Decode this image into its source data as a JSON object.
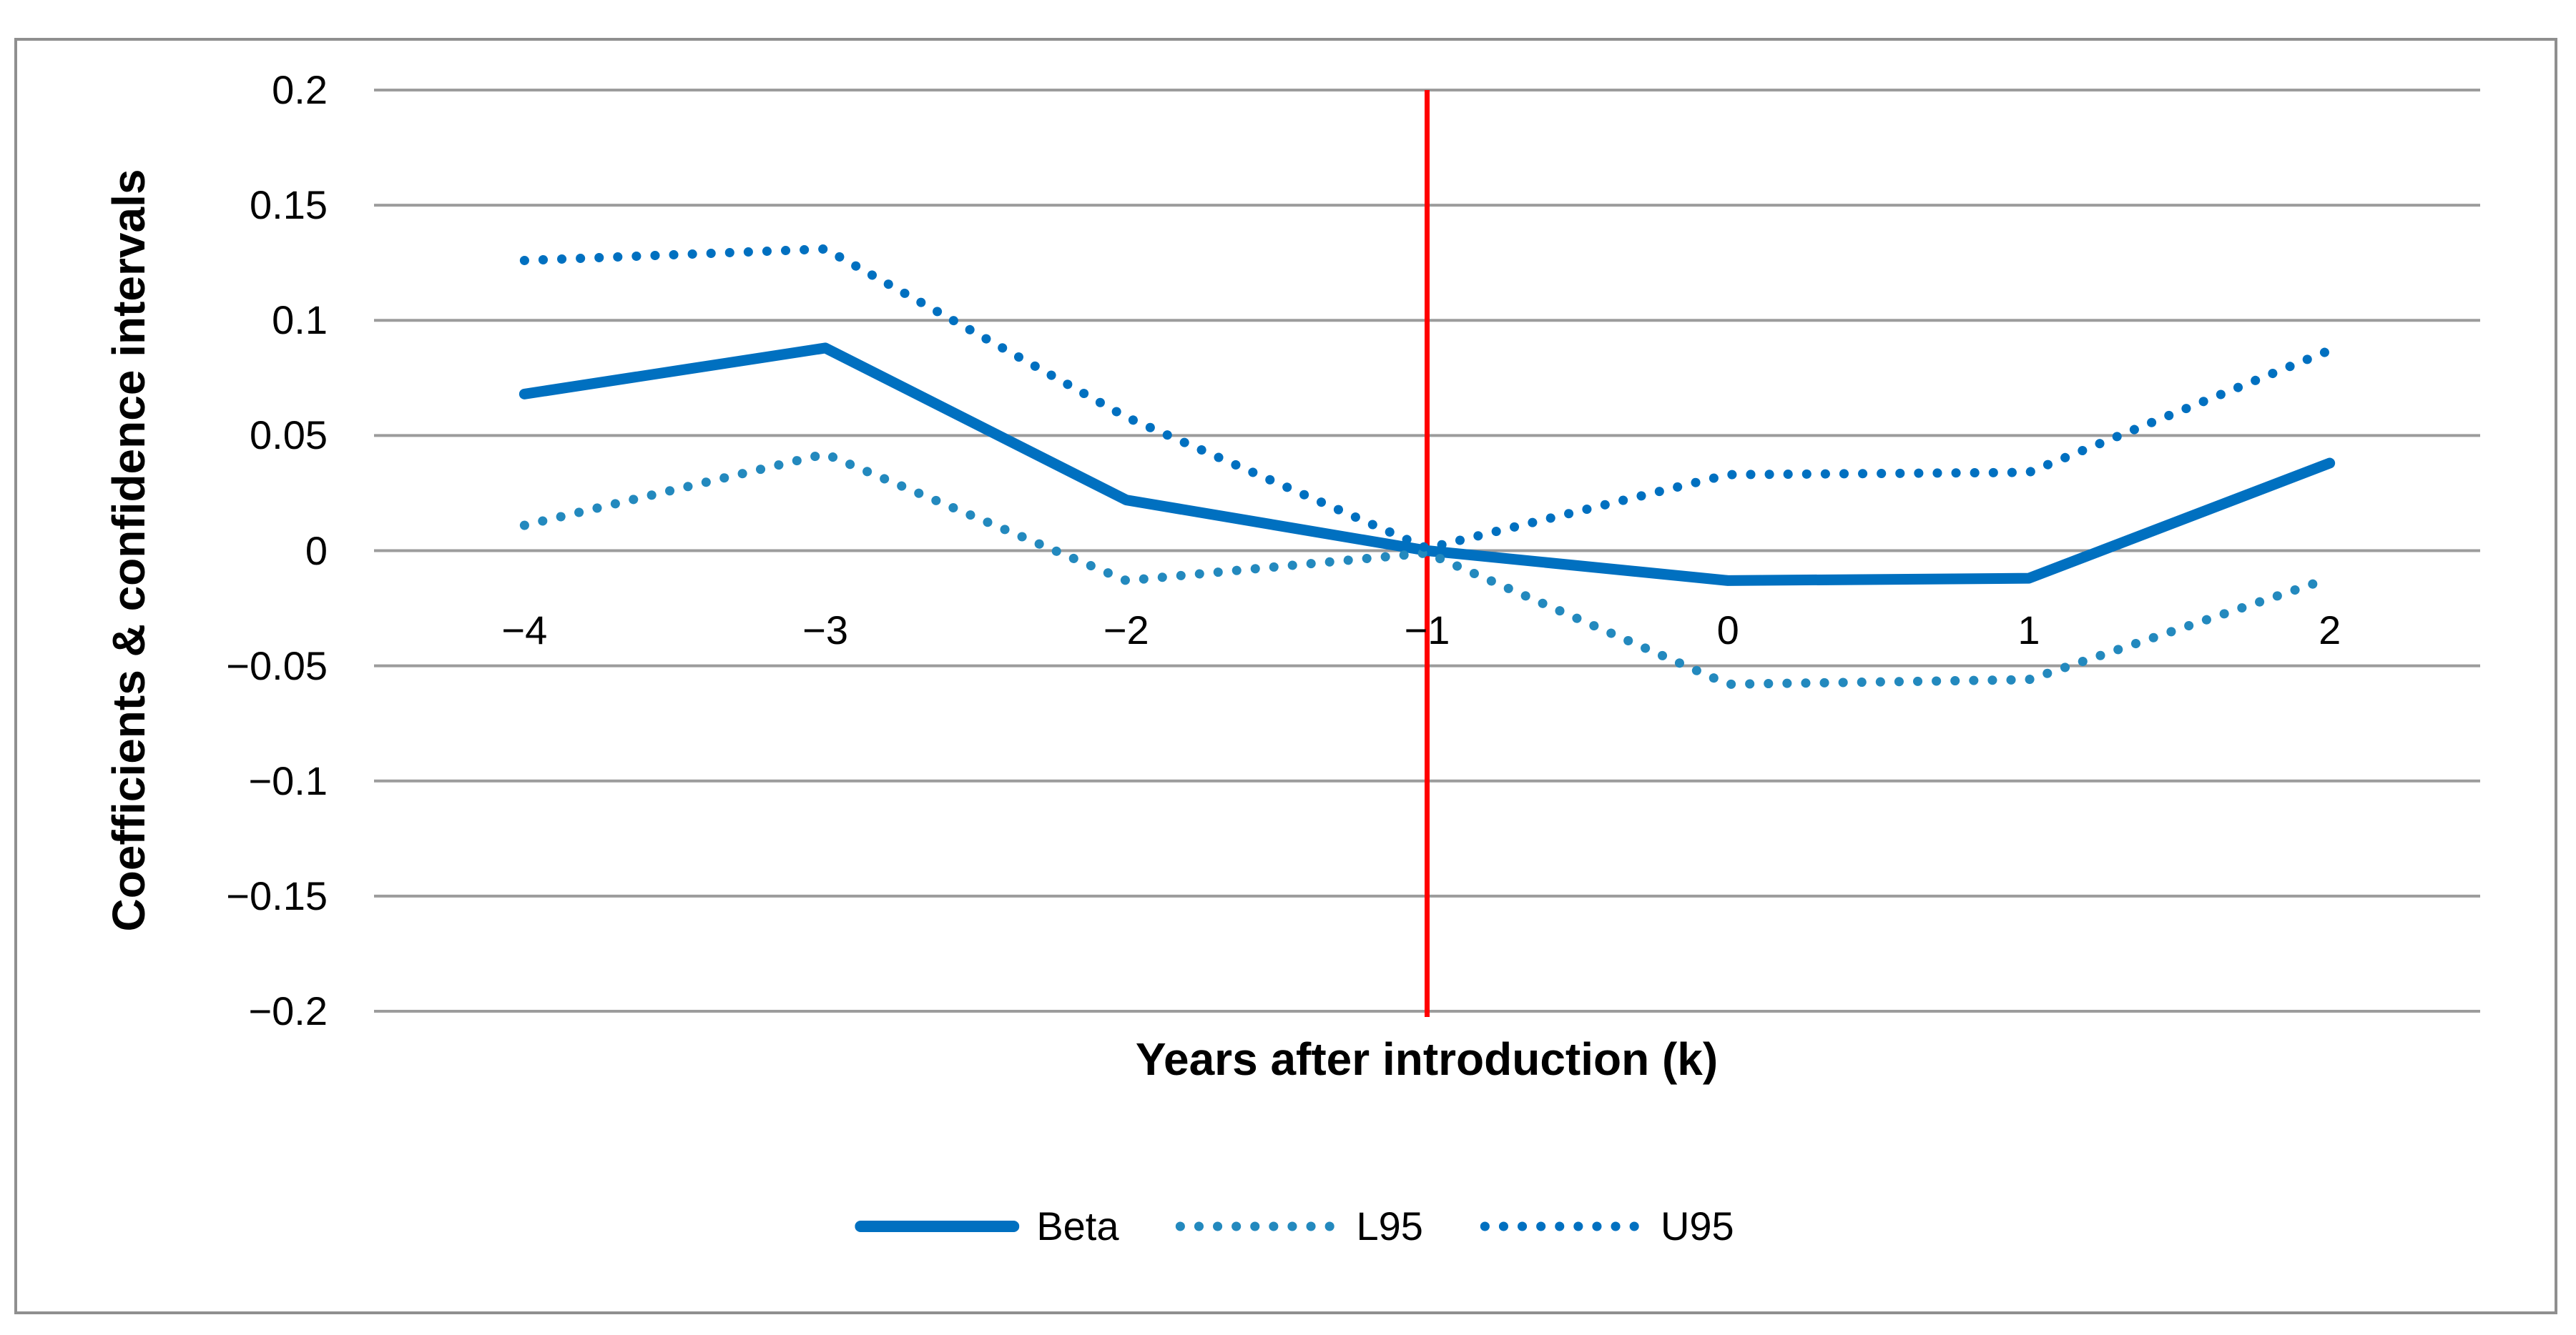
{
  "chart_data": {
    "type": "line",
    "title": "",
    "x": {
      "label": "Years after introduction (k)",
      "categories": [
        "−4",
        "−3",
        "−2",
        "−1",
        "0",
        "1",
        "2"
      ]
    },
    "y": {
      "label": "Coefficients & confidence intervals",
      "min": -0.2,
      "max": 0.2,
      "tick_step": 0.05,
      "ticks": [
        {
          "label": "0.2",
          "value": 0.2
        },
        {
          "label": "0.15",
          "value": 0.15
        },
        {
          "label": "0.1",
          "value": 0.1
        },
        {
          "label": "0.05",
          "value": 0.05
        },
        {
          "label": "0",
          "value": 0
        },
        {
          "label": "−0.05",
          "value": -0.05
        },
        {
          "label": "−0.1",
          "value": -0.1
        },
        {
          "label": "−0.15",
          "value": -0.15
        },
        {
          "label": "−0.2",
          "value": -0.2
        }
      ]
    },
    "series": [
      {
        "name": "Beta",
        "style": "solid",
        "color": "#0070C0",
        "values": [
          0.068,
          0.088,
          0.022,
          0.0,
          -0.013,
          -0.012,
          0.038
        ]
      },
      {
        "name": "L95",
        "style": "dotted",
        "color": "#2389BE",
        "values": [
          0.011,
          0.042,
          -0.013,
          -0.001,
          -0.058,
          -0.056,
          -0.012
        ]
      },
      {
        "name": "U95",
        "style": "dotted",
        "color": "#0070C0",
        "values": [
          0.126,
          0.131,
          0.058,
          0.001,
          0.033,
          0.034,
          0.087
        ]
      }
    ],
    "reference_line": {
      "category": "−1",
      "color": "#FF0000"
    },
    "grid": true,
    "grid_color": "#9c9c9c",
    "legend_position": "bottom"
  }
}
